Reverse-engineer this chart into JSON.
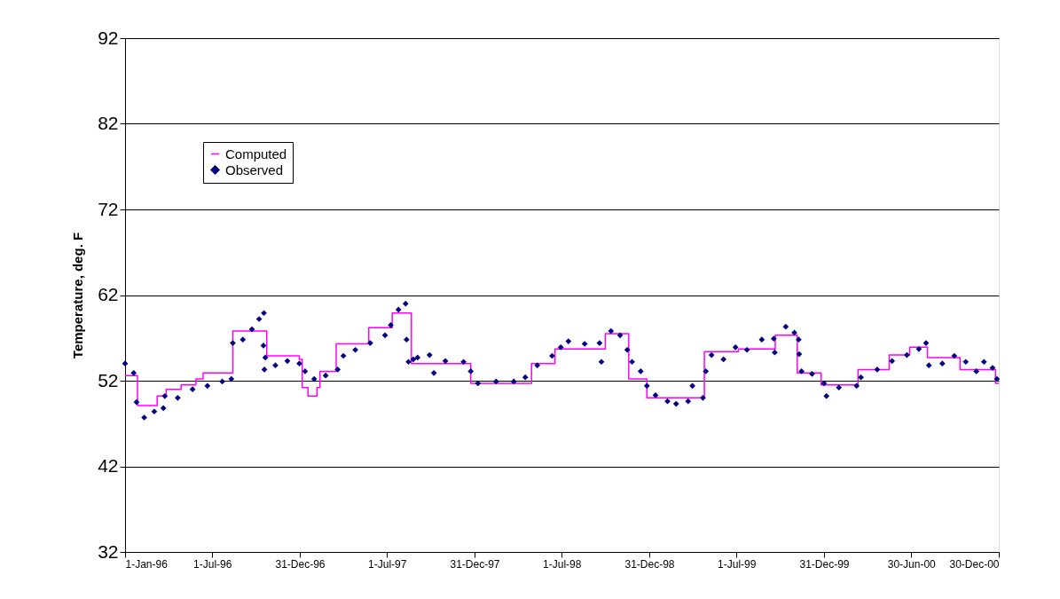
{
  "chart_data": {
    "type": "step",
    "ylabel": "Temperature, deg. F",
    "ylim": [
      32,
      92
    ],
    "yticks": [
      32,
      42,
      52,
      62,
      72,
      82,
      92
    ],
    "xlim": [
      "1996-01-01",
      "2000-12-30"
    ],
    "xticks": [
      {
        "value": "1996-01-01",
        "label": "1-Jan-96"
      },
      {
        "value": "1996-07-01",
        "label": "1-Jul-96"
      },
      {
        "value": "1996-12-31",
        "label": "31-Dec-96"
      },
      {
        "value": "1997-07-01",
        "label": "1-Jul-97"
      },
      {
        "value": "1997-12-31",
        "label": "31-Dec-97"
      },
      {
        "value": "1998-07-01",
        "label": "1-Jul-98"
      },
      {
        "value": "1998-12-31",
        "label": "31-Dec-98"
      },
      {
        "value": "1999-07-01",
        "label": "1-Jul-99"
      },
      {
        "value": "1999-12-31",
        "label": "31-Dec-99"
      },
      {
        "value": "2000-06-30",
        "label": "30-Jun-00"
      },
      {
        "value": "2000-12-30",
        "label": "30-Dec-00"
      }
    ],
    "grid": "y",
    "legend": "top left",
    "series": [
      {
        "name": "Computed",
        "type": "step",
        "color": "#ff00ff",
        "marker": "none",
        "line_style": "solid",
        "x": [
          "1996-01-01",
          "1996-01-27",
          "1996-03-08",
          "1996-03-27",
          "1996-04-27",
          "1996-05-28",
          "1996-06-12",
          "1996-08-13",
          "1996-10-23",
          "1996-12-30",
          "1997-01-05",
          "1997-01-17",
          "1997-02-05",
          "1997-02-11",
          "1997-03-17",
          "1997-05-24",
          "1997-07-12",
          "1997-08-21",
          "1997-12-23",
          "1998-04-29",
          "1998-06-17",
          "1998-09-30",
          "1998-11-18",
          "1998-12-26",
          "1999-04-25",
          "1999-07-05",
          "1999-09-20",
          "1999-11-05",
          "1999-12-25",
          "2000-03-11",
          "2000-05-15",
          "2000-06-27",
          "2000-08-03",
          "2000-10-10",
          "2000-12-23",
          "2000-12-30"
        ],
        "values": [
          52.6,
          49.1,
          50.2,
          51.0,
          51.5,
          52.2,
          52.9,
          57.8,
          54.9,
          54.5,
          51.2,
          50.2,
          51.2,
          53.1,
          56.3,
          58.2,
          59.9,
          54.0,
          51.7,
          54.0,
          55.7,
          57.5,
          52.2,
          50.0,
          55.4,
          55.7,
          57.3,
          52.9,
          51.5,
          53.3,
          55.0,
          55.9,
          54.7,
          53.3,
          51.7,
          51.7
        ]
      },
      {
        "name": "Observed",
        "type": "scatter",
        "color": "#000080",
        "marker": "diamond",
        "x": [
          "1996-01-01",
          "1996-01-19",
          "1996-01-25",
          "1996-02-10",
          "1996-03-02",
          "1996-03-21",
          "1996-03-24",
          "1996-04-20",
          "1996-05-21",
          "1996-06-21",
          "1996-07-22",
          "1996-08-10",
          "1996-08-13",
          "1996-09-03",
          "1996-09-22",
          "1996-10-07",
          "1996-10-16",
          "1996-10-17",
          "1996-10-18",
          "1996-10-20",
          "1996-11-10",
          "1996-12-05",
          "1996-12-30",
          "1997-01-11",
          "1997-01-30",
          "1997-02-23",
          "1997-03-20",
          "1997-04-01",
          "1997-04-26",
          "1997-05-27",
          "1997-06-27",
          "1997-07-09",
          "1997-07-25",
          "1997-08-09",
          "1997-08-11",
          "1997-08-15",
          "1997-08-25",
          "1997-09-03",
          "1997-09-28",
          "1997-10-07",
          "1997-10-31",
          "1997-12-08",
          "1997-12-23",
          "1998-01-07",
          "1998-02-14",
          "1998-03-23",
          "1998-04-16",
          "1998-05-11",
          "1998-06-11",
          "1998-06-29",
          "1998-07-15",
          "1998-08-18",
          "1998-09-18",
          "1998-09-22",
          "1998-10-12",
          "1998-10-31",
          "1998-11-15",
          "1998-11-25",
          "1998-12-13",
          "1998-12-26",
          "1999-01-13",
          "1999-02-07",
          "1999-02-25",
          "1999-03-22",
          "1999-03-31",
          "1999-04-22",
          "1999-04-28",
          "1999-05-10",
          "1999-06-04",
          "1999-06-29",
          "1999-07-23",
          "1999-08-23",
          "1999-09-17",
          "1999-09-19",
          "1999-10-12",
          "1999-10-30",
          "1999-11-08",
          "1999-11-09",
          "1999-11-14",
          "1999-12-06",
          "1999-12-31",
          "2000-01-05",
          "2000-01-31",
          "2000-03-08",
          "2000-03-17",
          "2000-04-20",
          "2000-05-21",
          "2000-06-21",
          "2000-07-16",
          "2000-07-31",
          "2000-08-06",
          "2000-09-03",
          "2000-09-28",
          "2000-10-22",
          "2000-11-13",
          "2000-11-29",
          "2000-12-17",
          "2000-12-26"
        ],
        "values": [
          54.0,
          52.9,
          49.5,
          47.7,
          48.4,
          48.8,
          50.2,
          50.0,
          51.0,
          51.4,
          51.9,
          52.2,
          56.4,
          56.8,
          58.0,
          59.2,
          56.1,
          59.9,
          53.3,
          54.7,
          53.8,
          54.3,
          54.0,
          53.1,
          52.2,
          52.6,
          53.3,
          54.9,
          55.6,
          56.4,
          57.3,
          58.5,
          60.3,
          61.0,
          56.8,
          54.2,
          54.5,
          54.7,
          55.0,
          52.9,
          54.3,
          54.2,
          53.1,
          51.7,
          51.9,
          51.9,
          52.4,
          53.8,
          54.9,
          55.9,
          56.6,
          56.3,
          56.4,
          54.2,
          57.8,
          57.3,
          55.6,
          54.2,
          53.1,
          51.4,
          50.3,
          49.6,
          49.3,
          49.6,
          51.4,
          50.0,
          53.1,
          55.0,
          54.5,
          55.9,
          55.6,
          56.8,
          56.9,
          55.3,
          58.3,
          57.6,
          56.8,
          55.1,
          53.1,
          52.8,
          51.7,
          50.2,
          51.2,
          51.4,
          52.4,
          53.3,
          54.3,
          55.0,
          55.7,
          56.4,
          53.8,
          54.0,
          54.9,
          54.2,
          53.1,
          54.2,
          53.5,
          52.2
        ]
      }
    ]
  }
}
